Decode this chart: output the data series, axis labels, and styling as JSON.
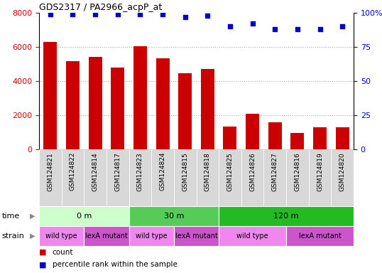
{
  "title": "GDS2317 / PA2966_acpP_at",
  "samples": [
    "GSM124821",
    "GSM124822",
    "GSM124814",
    "GSM124817",
    "GSM124823",
    "GSM124824",
    "GSM124815",
    "GSM124818",
    "GSM124825",
    "GSM124826",
    "GSM124827",
    "GSM124816",
    "GSM124819",
    "GSM124820"
  ],
  "counts": [
    6300,
    5150,
    5400,
    4800,
    6050,
    5350,
    4450,
    4700,
    1350,
    2100,
    1600,
    950,
    1300,
    1300
  ],
  "percentile_ranks": [
    99,
    99,
    99,
    99,
    99,
    99,
    97,
    98,
    90,
    92,
    88,
    88,
    88,
    90
  ],
  "bar_color": "#cc0000",
  "dot_color": "#0000cc",
  "ylim_left": [
    0,
    8000
  ],
  "ylim_right": [
    0,
    100
  ],
  "yticks_left": [
    0,
    2000,
    4000,
    6000,
    8000
  ],
  "yticks_right": [
    0,
    25,
    50,
    75,
    100
  ],
  "ytick_right_labels": [
    "0",
    "25",
    "50",
    "75",
    "100%"
  ],
  "grid_yticks": [
    2000,
    4000,
    6000
  ],
  "time_groups": [
    {
      "label": "0 m",
      "start": 0,
      "end": 4,
      "color": "#ccffcc"
    },
    {
      "label": "30 m",
      "start": 4,
      "end": 8,
      "color": "#55cc55"
    },
    {
      "label": "120 m",
      "start": 8,
      "end": 14,
      "color": "#22bb22"
    }
  ],
  "strain_groups": [
    {
      "label": "wild type",
      "start": 0,
      "end": 2,
      "color": "#ee88ee"
    },
    {
      "label": "lexA mutant",
      "start": 2,
      "end": 4,
      "color": "#cc55cc"
    },
    {
      "label": "wild type",
      "start": 4,
      "end": 6,
      "color": "#ee88ee"
    },
    {
      "label": "lexA mutant",
      "start": 6,
      "end": 8,
      "color": "#cc55cc"
    },
    {
      "label": "wild type",
      "start": 8,
      "end": 11,
      "color": "#ee88ee"
    },
    {
      "label": "lexA mutant",
      "start": 11,
      "end": 14,
      "color": "#cc55cc"
    }
  ],
  "legend_count_color": "#cc0000",
  "legend_pct_color": "#0000cc",
  "legend_count_label": "count",
  "legend_pct_label": "percentile rank within the sample",
  "bar_color_left": "#cc0000",
  "tick_color_left": "#cc0000",
  "tick_color_right": "#0000cc",
  "sample_label_bg": "#d8d8d8",
  "figsize": [
    5.38,
    3.84
  ],
  "dpi": 100
}
